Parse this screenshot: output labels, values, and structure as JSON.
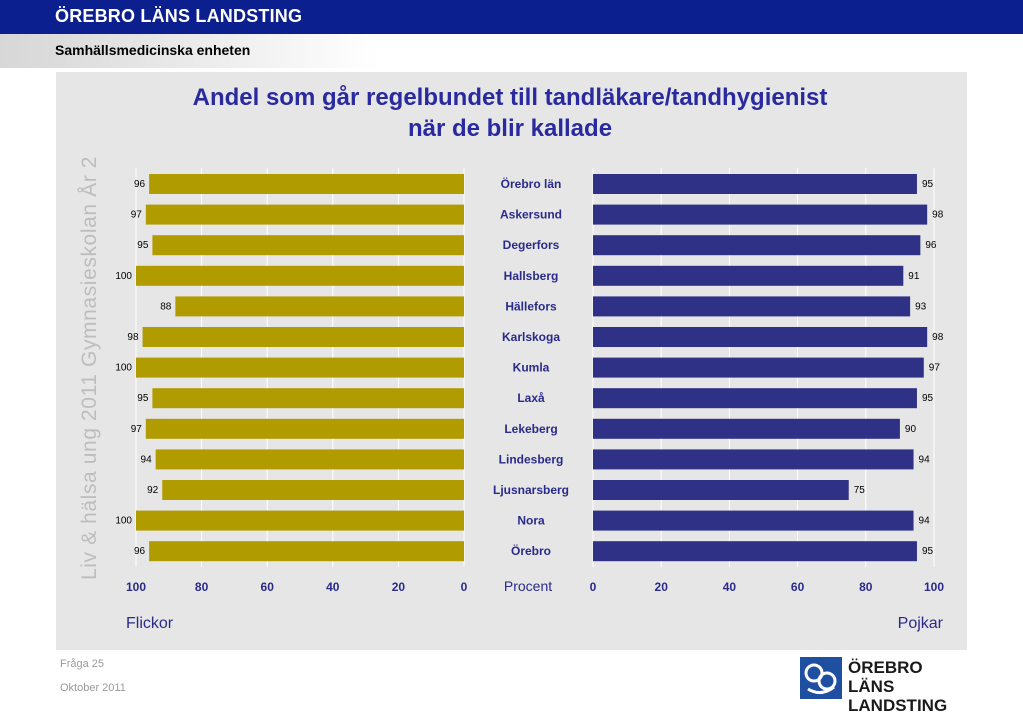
{
  "header": {
    "organization": "ÖREBRO LÄNS LANDSTING",
    "unit": "Samhällsmedicinska enheten"
  },
  "side_text": "Liv & hälsa ung 2011 Gymnasieskolan År 2",
  "footer": {
    "question": "Fråga 25",
    "date": "Oktober 2011"
  },
  "logo": {
    "line1": "ÖREBRO LÄNS",
    "line2": "LANDSTING",
    "icon": "landsting-logo-icon"
  },
  "colors": {
    "header_bg": "#0c1f8f",
    "girls": "#b19c00",
    "boys": "#2e3186",
    "title": "#2a2aa0"
  },
  "chart_data": {
    "type": "bar",
    "orientation": "horizontal-butterfly",
    "title_lines": [
      "Andel som går regelbundet till tandläkare/tandhygienist",
      "när de blir kallade"
    ],
    "categories": [
      "Örebro län",
      "Askersund",
      "Degerfors",
      "Hallsberg",
      "Hällefors",
      "Karlskoga",
      "Kumla",
      "Laxå",
      "Lekeberg",
      "Lindesberg",
      "Ljusnarsberg",
      "Nora",
      "Örebro"
    ],
    "series": [
      {
        "name": "Flickor",
        "values": [
          96,
          97,
          95,
          100,
          88,
          98,
          100,
          95,
          97,
          94,
          92,
          100,
          96
        ]
      },
      {
        "name": "Pojkar",
        "values": [
          95,
          98,
          96,
          91,
          93,
          98,
          97,
          95,
          90,
          94,
          75,
          94,
          95
        ]
      }
    ],
    "xlabel": "Procent",
    "left_ticks": [
      "100",
      "80",
      "60",
      "40",
      "20",
      "0"
    ],
    "right_ticks": [
      "0",
      "20",
      "40",
      "60",
      "80",
      "100"
    ],
    "xlim": [
      0,
      100
    ],
    "grid": true
  }
}
